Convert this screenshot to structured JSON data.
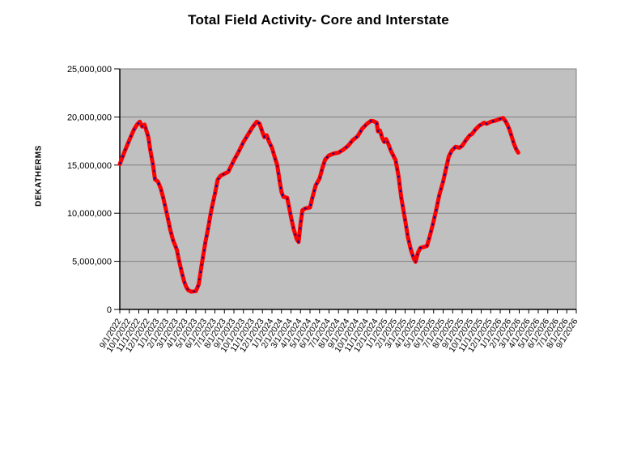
{
  "page": {
    "background": "#ffffff"
  },
  "chart_data": {
    "type": "line",
    "title": "Total Field Activity- Core and Interstate",
    "xlabel": "",
    "ylabel": "DEKATHERMS",
    "ylim": [
      0,
      25000000
    ],
    "ytick_interval": 5000000,
    "ytick_labels": [
      "0",
      "5,000,000",
      "10,000,000",
      "15,000,000",
      "20,000,000",
      "25,000,000"
    ],
    "grid": "horizontal-major",
    "legend_position": "none",
    "plot_background": "#c0c0c0",
    "gridline_color": "#808080",
    "axis_color": "#000000",
    "categories": [
      "9/1/2022",
      "10/1/2022",
      "11/1/2022",
      "12/1/2022",
      "1/1/2023",
      "2/1/2023",
      "3/1/2023",
      "4/1/2023",
      "5/1/2023",
      "6/1/2023",
      "7/1/2023",
      "8/1/2023",
      "9/1/2023",
      "10/1/2023",
      "11/1/2023",
      "12/1/2023",
      "1/1/2024",
      "2/1/2024",
      "3/1/2024",
      "4/1/2024",
      "5/1/2024",
      "6/1/2024",
      "7/1/2024",
      "8/1/2024",
      "9/1/2024",
      "10/1/2024",
      "11/1/2024",
      "12/1/2024",
      "1/1/2025",
      "2/1/2025",
      "3/1/2025",
      "4/1/2025",
      "5/1/2025",
      "6/1/2025",
      "7/1/2025",
      "8/1/2025",
      "9/1/2025",
      "10/1/2025",
      "11/1/2025",
      "12/1/2025",
      "1/1/2026",
      "2/1/2026",
      "3/1/2026",
      "4/1/2026",
      "5/1/2026",
      "6/1/2026",
      "7/1/2026",
      "8/1/2026",
      "9/1/2026"
    ],
    "x_unit": "month index from 9/1/2022 (fractional = intra-month)",
    "series": [
      {
        "name": "Total Field Activity- Core and Interstate",
        "color": "#ff0000",
        "stroke_width": 5,
        "points": [
          [
            0,
            15100000
          ],
          [
            0.5,
            16400000
          ],
          [
            1,
            17600000
          ],
          [
            1.5,
            18700000
          ],
          [
            1.8,
            19200000
          ],
          [
            2.1,
            19500000
          ],
          [
            2.35,
            19000000
          ],
          [
            2.6,
            19200000
          ],
          [
            3,
            17900000
          ],
          [
            3.2,
            16600000
          ],
          [
            3.5,
            15000000
          ],
          [
            3.7,
            13500000
          ],
          [
            4,
            13300000
          ],
          [
            4.3,
            12600000
          ],
          [
            4.6,
            11500000
          ],
          [
            5,
            9700000
          ],
          [
            5.3,
            8300000
          ],
          [
            5.6,
            7200000
          ],
          [
            6,
            6200000
          ],
          [
            6.2,
            5200000
          ],
          [
            6.5,
            3900000
          ],
          [
            6.8,
            2800000
          ],
          [
            7,
            2300000
          ],
          [
            7.2,
            2000000
          ],
          [
            7.5,
            1850000
          ],
          [
            8,
            1900000
          ],
          [
            8.3,
            2600000
          ],
          [
            8.6,
            4600000
          ],
          [
            9,
            7000000
          ],
          [
            9.3,
            8500000
          ],
          [
            9.6,
            10200000
          ],
          [
            10,
            12000000
          ],
          [
            10.3,
            13500000
          ],
          [
            10.6,
            13900000
          ],
          [
            11,
            14100000
          ],
          [
            11.4,
            14300000
          ],
          [
            11.7,
            14900000
          ],
          [
            12,
            15500000
          ],
          [
            12.5,
            16400000
          ],
          [
            13,
            17400000
          ],
          [
            13.5,
            18200000
          ],
          [
            14,
            19000000
          ],
          [
            14.4,
            19500000
          ],
          [
            14.7,
            19300000
          ],
          [
            15,
            18400000
          ],
          [
            15.2,
            17900000
          ],
          [
            15.45,
            18100000
          ],
          [
            15.7,
            17400000
          ],
          [
            16,
            16800000
          ],
          [
            16.3,
            15800000
          ],
          [
            16.55,
            15000000
          ],
          [
            16.8,
            13400000
          ],
          [
            17,
            12200000
          ],
          [
            17.2,
            11700000
          ],
          [
            17.6,
            11600000
          ],
          [
            17.85,
            10400000
          ],
          [
            18,
            9600000
          ],
          [
            18.3,
            8300000
          ],
          [
            18.6,
            7300000
          ],
          [
            18.8,
            7000000
          ],
          [
            19,
            8900000
          ],
          [
            19.2,
            10300000
          ],
          [
            19.5,
            10500000
          ],
          [
            20,
            10600000
          ],
          [
            20.3,
            11800000
          ],
          [
            20.6,
            12900000
          ],
          [
            21,
            13600000
          ],
          [
            21.3,
            14700000
          ],
          [
            21.6,
            15600000
          ],
          [
            22,
            16000000
          ],
          [
            22.5,
            16200000
          ],
          [
            23,
            16300000
          ],
          [
            23.5,
            16600000
          ],
          [
            24,
            17000000
          ],
          [
            24.5,
            17600000
          ],
          [
            25,
            18000000
          ],
          [
            25.5,
            18800000
          ],
          [
            26,
            19300000
          ],
          [
            26.4,
            19600000
          ],
          [
            26.7,
            19550000
          ],
          [
            27,
            19400000
          ],
          [
            27.15,
            18500000
          ],
          [
            27.35,
            18600000
          ],
          [
            27.6,
            17800000
          ],
          [
            27.8,
            17400000
          ],
          [
            28,
            17700000
          ],
          [
            28.2,
            17300000
          ],
          [
            28.5,
            16500000
          ],
          [
            28.8,
            15900000
          ],
          [
            29,
            15500000
          ],
          [
            29.3,
            13900000
          ],
          [
            29.6,
            11600000
          ],
          [
            30,
            9300000
          ],
          [
            30.3,
            7500000
          ],
          [
            30.6,
            6200000
          ],
          [
            30.9,
            5300000
          ],
          [
            31.1,
            4950000
          ],
          [
            31.35,
            5900000
          ],
          [
            31.6,
            6400000
          ],
          [
            32,
            6500000
          ],
          [
            32.3,
            6600000
          ],
          [
            32.6,
            7600000
          ],
          [
            33,
            9200000
          ],
          [
            33.3,
            10500000
          ],
          [
            33.6,
            11900000
          ],
          [
            34,
            13300000
          ],
          [
            34.3,
            14600000
          ],
          [
            34.6,
            15900000
          ],
          [
            34.9,
            16500000
          ],
          [
            35.3,
            16900000
          ],
          [
            35.7,
            16800000
          ],
          [
            36,
            17000000
          ],
          [
            36.4,
            17600000
          ],
          [
            36.8,
            18100000
          ],
          [
            37,
            18200000
          ],
          [
            37.4,
            18700000
          ],
          [
            37.8,
            19100000
          ],
          [
            38,
            19200000
          ],
          [
            38.3,
            19400000
          ],
          [
            38.6,
            19300000
          ],
          [
            39,
            19500000
          ],
          [
            39.4,
            19600000
          ],
          [
            39.7,
            19700000
          ],
          [
            40,
            19800000
          ],
          [
            40.3,
            19900000
          ],
          [
            40.6,
            19500000
          ],
          [
            40.8,
            19100000
          ],
          [
            41,
            18600000
          ],
          [
            41.2,
            18000000
          ],
          [
            41.45,
            17200000
          ],
          [
            41.7,
            16600000
          ],
          [
            41.9,
            16300000
          ]
        ]
      }
    ],
    "overlay": {
      "name": "dashed-overlay-on-line",
      "color": "#000099",
      "dash": [
        2.5,
        6.5
      ],
      "stroke_width": 2,
      "follows_series": 0
    }
  }
}
